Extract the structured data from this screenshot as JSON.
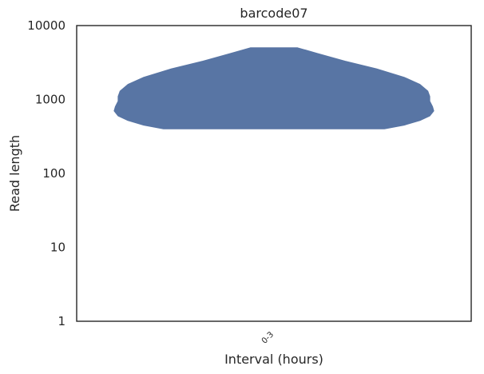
{
  "chart_data": {
    "type": "violin",
    "title": "barcode07",
    "xlabel": "Interval (hours)",
    "ylabel": "Read length",
    "y_scale": "log",
    "ylim": [
      1,
      10000
    ],
    "y_ticks": [
      "1",
      "10",
      "100",
      "1000",
      "10000"
    ],
    "categories": [
      "0-3"
    ],
    "grid": false,
    "legend": "none",
    "series": [
      {
        "category": "0-3",
        "color": "#5875a4",
        "min": 400,
        "max": 5000,
        "density_profile": [
          {
            "y": 400,
            "half_width": 0.28
          },
          {
            "y": 450,
            "half_width": 0.33
          },
          {
            "y": 520,
            "half_width": 0.37
          },
          {
            "y": 600,
            "half_width": 0.395
          },
          {
            "y": 700,
            "half_width": 0.405
          },
          {
            "y": 800,
            "half_width": 0.402
          },
          {
            "y": 950,
            "half_width": 0.395
          },
          {
            "y": 1100,
            "half_width": 0.395
          },
          {
            "y": 1300,
            "half_width": 0.39
          },
          {
            "y": 1600,
            "half_width": 0.37
          },
          {
            "y": 2000,
            "half_width": 0.33
          },
          {
            "y": 2600,
            "half_width": 0.26
          },
          {
            "y": 3300,
            "half_width": 0.18
          },
          {
            "y": 4200,
            "half_width": 0.11
          },
          {
            "y": 5000,
            "half_width": 0.06
          }
        ]
      }
    ]
  }
}
